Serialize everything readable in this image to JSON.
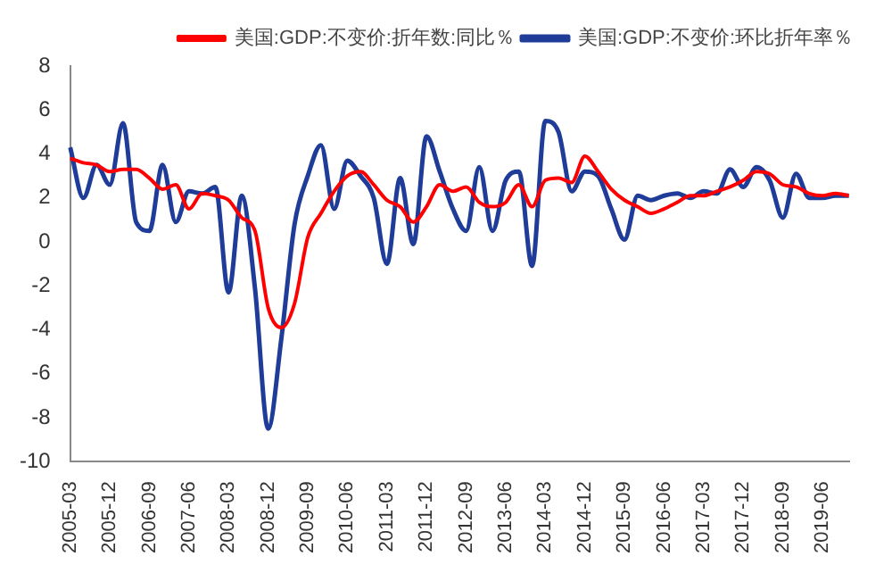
{
  "chart_data": {
    "type": "line",
    "categories": [
      "2005-03",
      null,
      null,
      "2005-12",
      null,
      null,
      "2006-09",
      null,
      null,
      "2007-06",
      null,
      null,
      "2008-03",
      null,
      null,
      "2008-12",
      null,
      null,
      "2009-09",
      null,
      null,
      "2010-06",
      null,
      null,
      "2011-03",
      null,
      null,
      "2011-12",
      null,
      null,
      "2012-09",
      null,
      null,
      "2013-06",
      null,
      null,
      "2014-03",
      null,
      null,
      "2014-12",
      null,
      null,
      "2015-09",
      null,
      null,
      "2016-06",
      null,
      null,
      "2017-03",
      null,
      null,
      "2017-12",
      null,
      null,
      "2018-09",
      null,
      null,
      "2019-06",
      null,
      null
    ],
    "series": [
      {
        "name": "美国:GDP:不变价:折年数:同比％",
        "color": "#ff0000",
        "values": [
          3.8,
          3.6,
          3.5,
          3.2,
          3.3,
          3.3,
          2.9,
          2.4,
          2.6,
          1.5,
          2.2,
          2.1,
          1.9,
          1.1,
          0.5,
          -3.0,
          -3.9,
          -2.8,
          0.2,
          1.3,
          2.3,
          3.0,
          3.2,
          2.6,
          1.9,
          1.6,
          0.9,
          1.6,
          2.6,
          2.3,
          2.5,
          1.8,
          1.6,
          1.8,
          2.6,
          1.6,
          2.8,
          2.9,
          2.7,
          3.9,
          3.2,
          2.4,
          1.9,
          1.6,
          1.3,
          1.5,
          1.8,
          2.1,
          2.1,
          2.3,
          2.5,
          2.8,
          3.2,
          3.1,
          2.6,
          2.5,
          2.2,
          2.1,
          2.2,
          2.1
        ]
      },
      {
        "name": "美国:GDP:不变价:环比折年率％",
        "color": "#1f3c98",
        "values": [
          4.3,
          2.0,
          3.5,
          2.6,
          5.4,
          0.9,
          0.5,
          3.5,
          0.9,
          2.3,
          2.2,
          2.5,
          -2.3,
          2.1,
          -2.1,
          -8.5,
          -4.4,
          0.8,
          3.0,
          4.4,
          1.5,
          3.7,
          3.0,
          2.0,
          -1.0,
          2.9,
          -0.1,
          4.8,
          3.2,
          1.5,
          0.5,
          3.4,
          0.5,
          2.8,
          3.2,
          -1.1,
          5.5,
          5.0,
          2.3,
          3.2,
          3.0,
          1.5,
          0.1,
          2.1,
          1.9,
          2.1,
          2.2,
          2.0,
          2.3,
          2.2,
          3.3,
          2.5,
          3.4,
          2.8,
          1.1,
          3.1,
          2.0,
          2.0,
          2.1,
          2.1
        ]
      }
    ],
    "ylim": [
      -10,
      8
    ],
    "yticks": [
      -10,
      -8,
      -6,
      -4,
      -2,
      0,
      2,
      4,
      6,
      8
    ],
    "grid": false,
    "legend": "top right"
  }
}
